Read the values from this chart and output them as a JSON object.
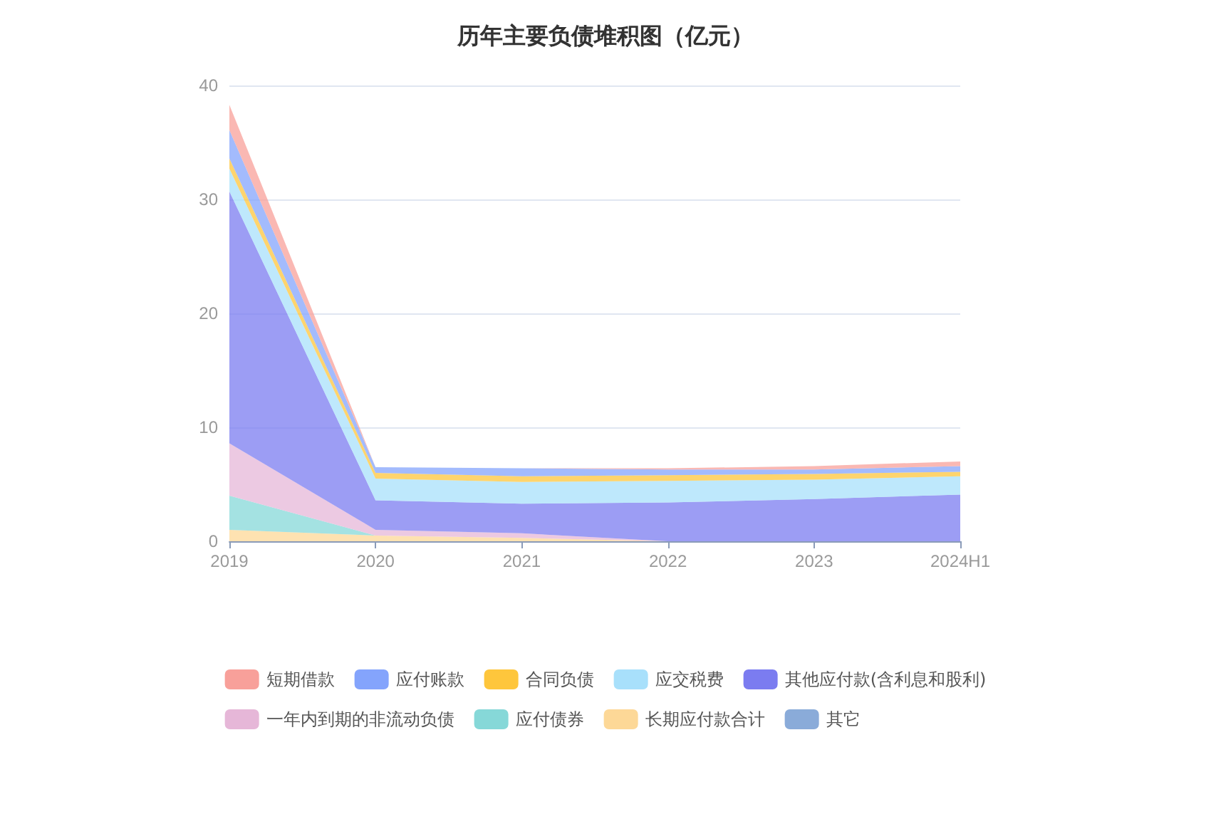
{
  "chart_data": {
    "type": "area",
    "stacked": true,
    "title": "历年主要负债堆积图（亿元）",
    "categories": [
      "2019",
      "2020",
      "2021",
      "2022",
      "2023",
      "2024H1"
    ],
    "ylim": [
      0,
      40
    ],
    "yticks": [
      0,
      10,
      20,
      30,
      40
    ],
    "grid": "y",
    "legend": "bottom",
    "series": [
      {
        "name": "其它",
        "color": "#8aabd9",
        "values": [
          null,
          null,
          null,
          null,
          null,
          null
        ]
      },
      {
        "name": "长期应付款合计",
        "color": "#fdd897",
        "values": [
          1.0,
          0.5,
          0.3,
          0,
          0,
          0
        ]
      },
      {
        "name": "应付债券",
        "color": "#86d8d8",
        "values": [
          3.0,
          0,
          0,
          0,
          0,
          0
        ]
      },
      {
        "name": "一年内到期的非流动负债",
        "color": "#e6b7d8",
        "values": [
          4.6,
          0.5,
          0.4,
          0,
          0,
          0
        ]
      },
      {
        "name": "其他应付款(含利息和股利)",
        "color": "#7b7cf0",
        "values": [
          22.1,
          2.6,
          2.6,
          3.4,
          3.7,
          4.1
        ]
      },
      {
        "name": "应交税费",
        "color": "#a8e0fb",
        "values": [
          2.0,
          1.9,
          1.9,
          1.9,
          1.7,
          1.6
        ]
      },
      {
        "name": "合同负债",
        "color": "#fec63c",
        "values": [
          0.9,
          0.5,
          0.5,
          0.5,
          0.5,
          0.4
        ]
      },
      {
        "name": "应付账款",
        "color": "#84a4fc",
        "values": [
          2.5,
          0.5,
          0.7,
          0.5,
          0.4,
          0.5
        ]
      },
      {
        "name": "短期借款",
        "color": "#f8a09a",
        "values": [
          2.2,
          0,
          0,
          0.1,
          0.3,
          0.4
        ]
      }
    ]
  }
}
